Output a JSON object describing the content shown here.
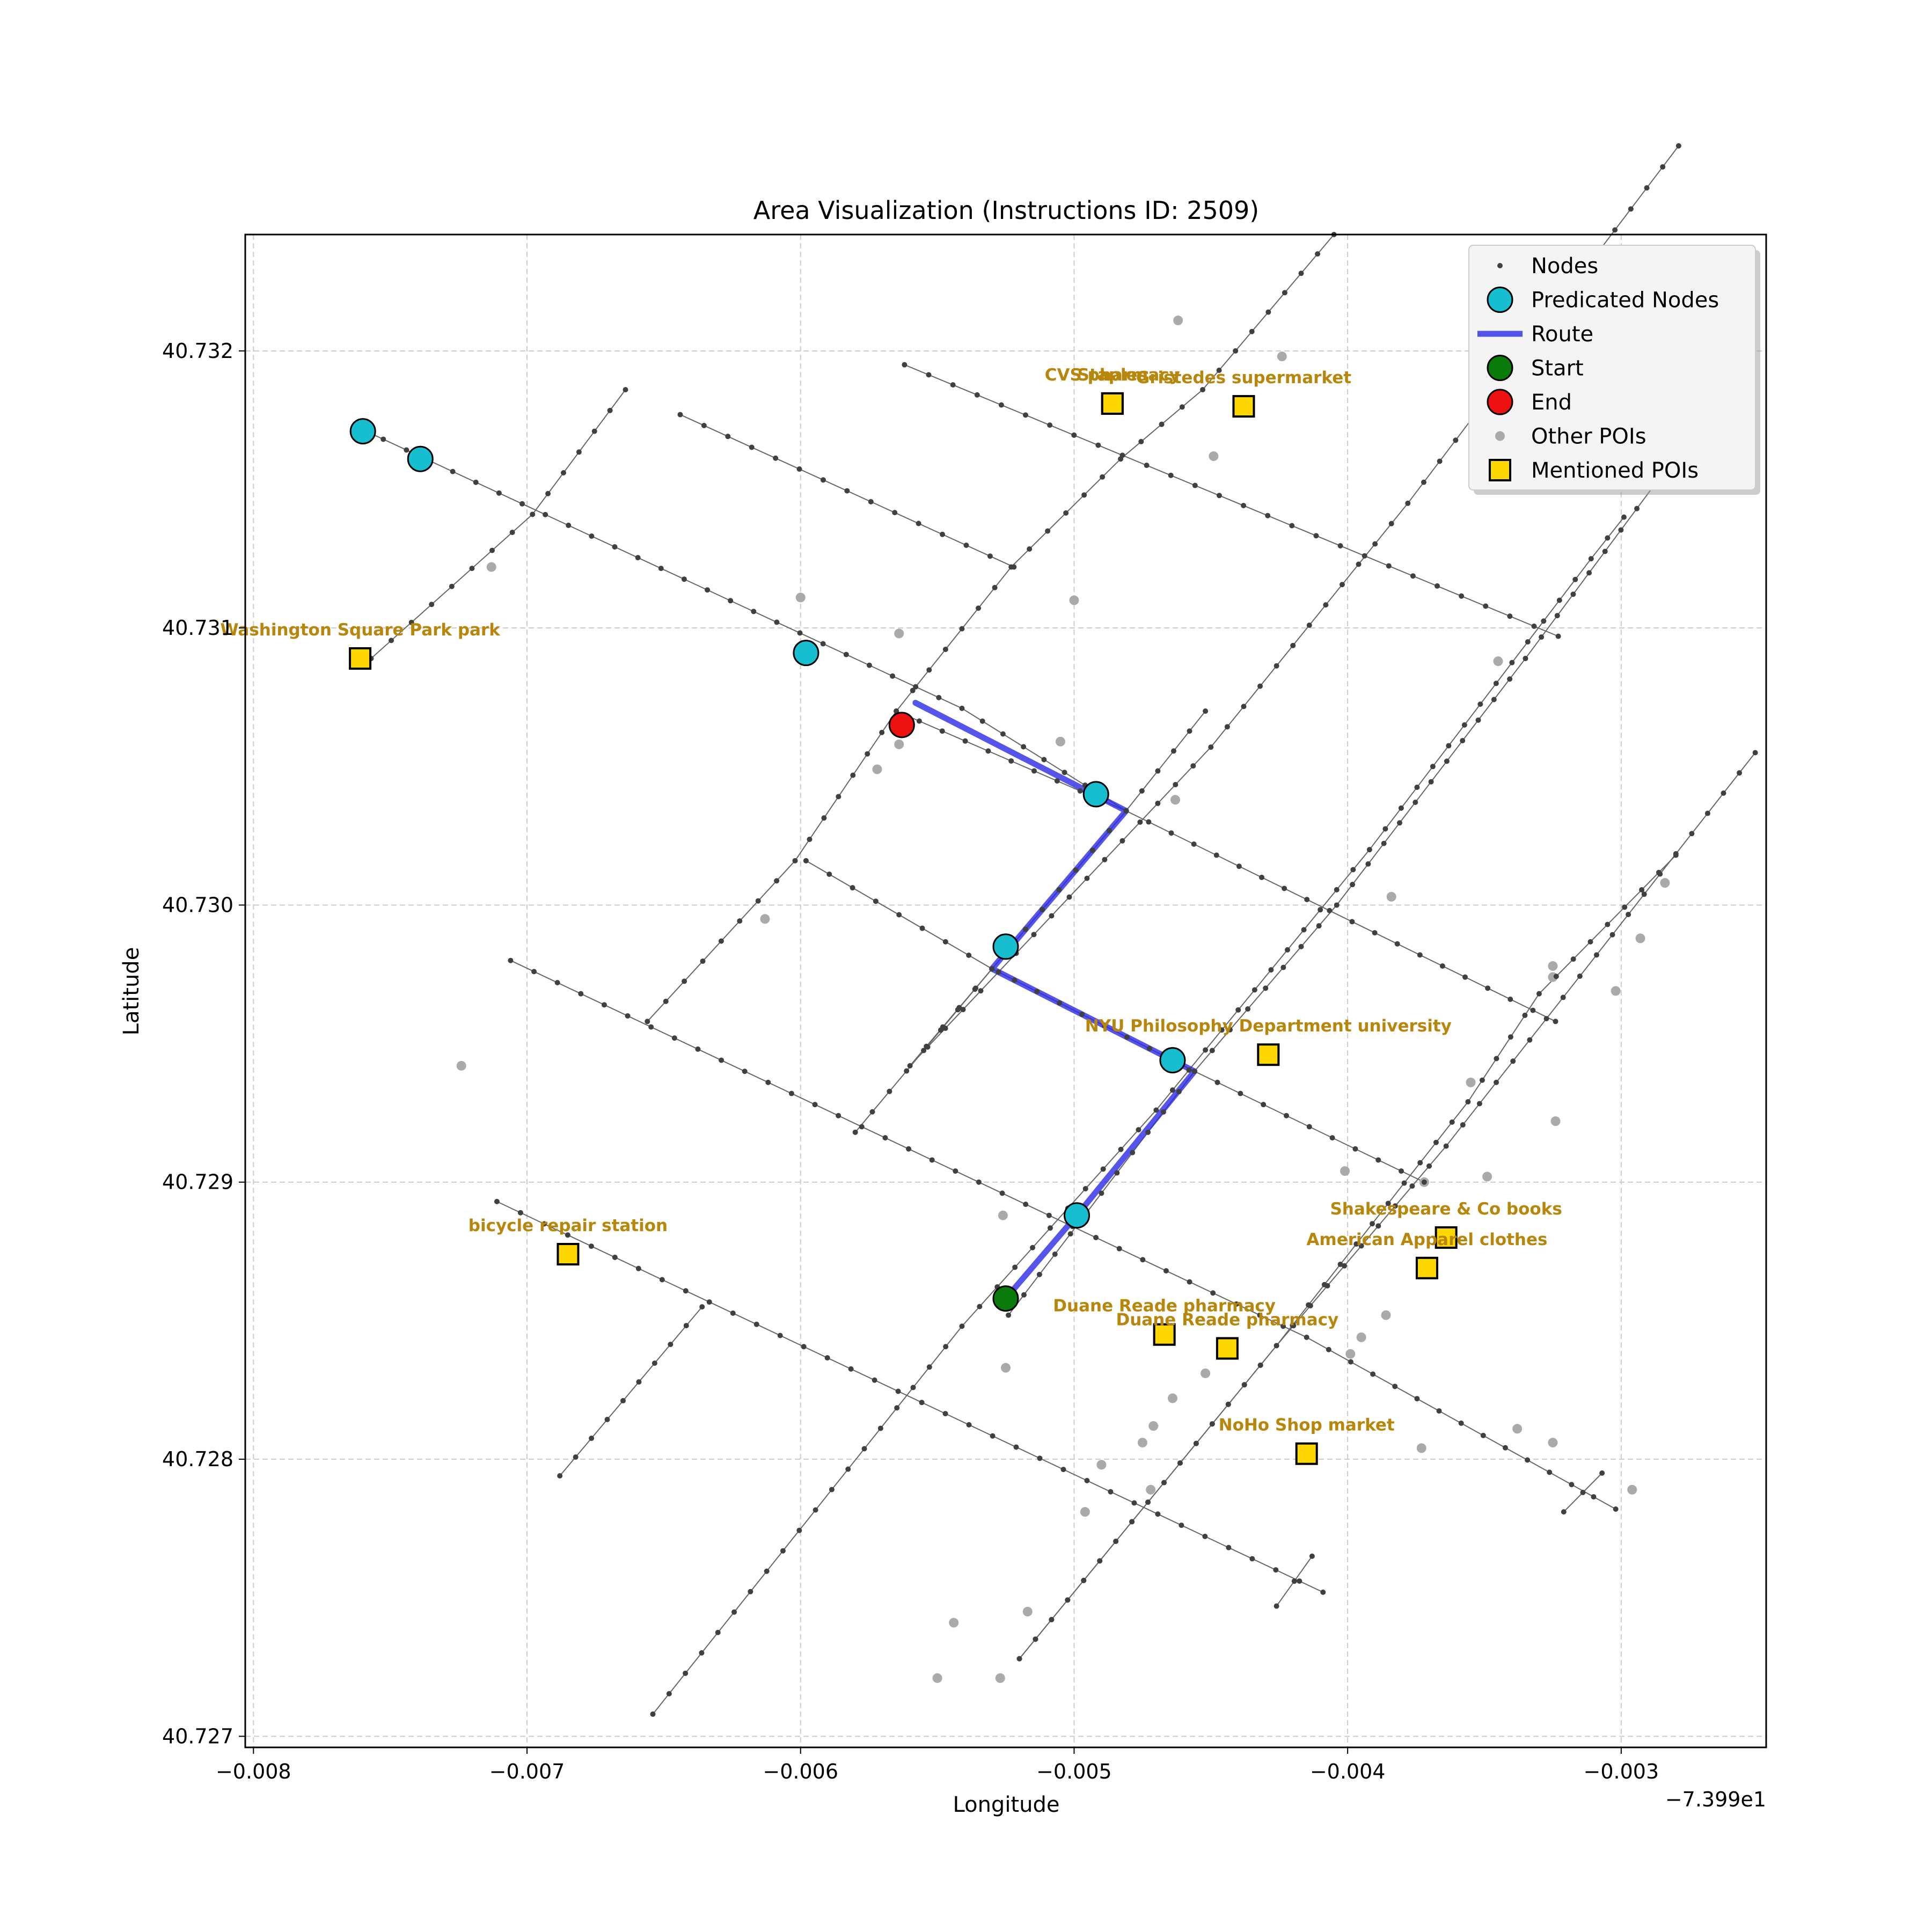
{
  "chart_data": {
    "type": "scatter",
    "title": "Area Visualization (Instructions ID: 2509)",
    "xlabel": "Longitude",
    "ylabel": "Latitude",
    "x_offset_label": "−7.399e1",
    "xlim": [
      -0.00803,
      -0.00247
    ],
    "ylim": [
      40.72696,
      40.73242
    ],
    "xticks": [
      -0.008,
      -0.007,
      -0.006,
      -0.005,
      -0.004,
      -0.003
    ],
    "xtick_labels": [
      "−0.008",
      "−0.007",
      "−0.006",
      "−0.005",
      "−0.004",
      "−0.003"
    ],
    "yticks": [
      40.727,
      40.728,
      40.729,
      40.73,
      40.731,
      40.732
    ],
    "ytick_labels": [
      "40.727",
      "40.728",
      "40.729",
      "40.730",
      "40.731",
      "40.732"
    ],
    "grid": true,
    "legend_position": "top-right",
    "legend": [
      {
        "key": "nodes",
        "label": "Nodes"
      },
      {
        "key": "predicted",
        "label": "Predicated Nodes"
      },
      {
        "key": "route",
        "label": "Route"
      },
      {
        "key": "start",
        "label": "Start"
      },
      {
        "key": "end",
        "label": "End"
      },
      {
        "key": "other_pois",
        "label": "Other POIs"
      },
      {
        "key": "mentioned_pois",
        "label": "Mentioned POIs"
      }
    ],
    "colors": {
      "node": "#404040",
      "street": "#666666",
      "predicted": "#17becf",
      "route": "#2a2ae6",
      "start": "#0a7a0a",
      "end": "#ee1111",
      "other_poi": "#aaaaaa",
      "mentioned_poi": "#ffd700",
      "poi_label": "#b8860b",
      "grid": "#cccccc"
    },
    "streets": [
      [
        [
          -0.00761,
          40.73172
        ],
        [
          -0.00541,
          40.73071
        ],
        [
          -0.00481,
          40.73034
        ],
        [
          -0.00324,
          40.72958
        ]
      ],
      [
        [
          -0.00598,
          40.73016
        ],
        [
          -0.0053,
          40.72977
        ],
        [
          -0.00456,
          40.7294
        ],
        [
          -0.00372,
          40.729
        ]
      ],
      [
        [
          -0.00706,
          40.7298
        ],
        [
          -0.00415,
          40.72844
        ],
        [
          -0.00302,
          40.72782
        ]
      ],
      [
        [
          -0.00711,
          40.72893
        ],
        [
          -0.00409,
          40.72752
        ]
      ],
      [
        [
          -0.00644,
          40.73177
        ],
        [
          -0.00522,
          40.73122
        ]
      ],
      [
        [
          -0.00562,
          40.73195
        ],
        [
          -0.00323,
          40.73097
        ]
      ],
      [
        [
          -0.00654,
          40.72708
        ],
        [
          -0.00541,
          40.72848
        ],
        [
          -0.0047,
          40.72926
        ],
        [
          -0.00392,
          40.7302
        ],
        [
          -0.00311,
          40.73125
        ],
        [
          -0.00299,
          40.7314
        ]
      ],
      [
        [
          -0.00565,
          40.7307
        ],
        [
          -0.00481,
          40.73034
        ],
        [
          -0.0053,
          40.72977
        ],
        [
          -0.0056,
          40.72942
        ],
        [
          -0.0045,
          40.73057
        ],
        [
          -0.00378,
          40.73145
        ],
        [
          -0.00279,
          40.73274
        ]
      ],
      [
        [
          -0.00524,
          40.72852
        ],
        [
          -0.00456,
          40.7294
        ],
        [
          -0.00404,
          40.73
        ],
        [
          -0.00335,
          40.73089
        ],
        [
          -0.00271,
          40.73174
        ]
      ],
      [
        [
          -0.0052,
          40.72728
        ],
        [
          -0.00426,
          40.72841
        ],
        [
          -0.00356,
          40.72929
        ],
        [
          -0.0033,
          40.72968
        ],
        [
          -0.0028,
          40.73018
        ]
      ],
      [
        [
          -0.0052,
          40.72728
        ],
        [
          -0.00426,
          40.72841
        ],
        [
          -0.00364,
          40.72913
        ],
        [
          -0.00309,
          40.72982
        ],
        [
          -0.00251,
          40.73055
        ]
      ],
      [
        [
          -0.00757,
          40.73089
        ],
        [
          -0.00698,
          40.73141
        ],
        [
          -0.00664,
          40.73186
        ]
      ],
      [
        [
          -0.00688,
          40.72794
        ],
        [
          -0.00636,
          40.72855
        ]
      ],
      [
        [
          -0.00413,
          40.72765
        ],
        [
          -0.00426,
          40.72747
        ]
      ],
      [
        [
          -0.00307,
          40.72795
        ],
        [
          -0.00321,
          40.72781
        ]
      ],
      [
        [
          -0.00656,
          40.72958
        ],
        [
          -0.00602,
          40.73016
        ],
        [
          -0.00565,
          40.7307
        ],
        [
          -0.00523,
          40.73122
        ],
        [
          -0.00483,
          40.73161
        ],
        [
          -0.00453,
          40.73186
        ],
        [
          -0.00405,
          40.73242
        ]
      ],
      [
        [
          -0.0058,
          40.72918
        ],
        [
          -0.0053,
          40.72977
        ],
        [
          -0.00481,
          40.73034
        ],
        [
          -0.00452,
          40.7307
        ]
      ]
    ],
    "route": [
      [
        -0.00525,
        40.72858
      ],
      [
        -0.00499,
        40.72888
      ],
      [
        -0.00456,
        40.7294
      ],
      [
        -0.0053,
        40.72977
      ],
      [
        -0.00481,
        40.73034
      ],
      [
        -0.00558,
        40.73073
      ]
    ],
    "predicted_nodes": [
      [
        -0.0076,
        40.73171
      ],
      [
        -0.00739,
        40.73161
      ],
      [
        -0.00598,
        40.73091
      ],
      [
        -0.00492,
        40.7304
      ],
      [
        -0.00525,
        40.72985
      ],
      [
        -0.00464,
        40.72944
      ],
      [
        -0.00499,
        40.72888
      ]
    ],
    "start": [
      -0.00525,
      40.72858
    ],
    "end": [
      -0.00563,
      40.73065
    ],
    "other_pois": [
      [
        -0.00462,
        40.73211
      ],
      [
        -0.00424,
        40.73198
      ],
      [
        -0.00449,
        40.73162
      ],
      [
        -0.00713,
        40.73122
      ],
      [
        -0.006,
        40.73111
      ],
      [
        -0.005,
        40.7311
      ],
      [
        -0.00564,
        40.73098
      ],
      [
        -0.00345,
        40.73088
      ],
      [
        -0.00505,
        40.73059
      ],
      [
        -0.00564,
        40.73058
      ],
      [
        -0.00572,
        40.73049
      ],
      [
        -0.00463,
        40.73038
      ],
      [
        -0.00613,
        40.72995
      ],
      [
        -0.00384,
        40.73003
      ],
      [
        -0.00284,
        40.73008
      ],
      [
        -0.00293,
        40.72988
      ],
      [
        -0.00325,
        40.72978
      ],
      [
        -0.00325,
        40.72974
      ],
      [
        -0.00302,
        40.72969
      ],
      [
        -0.00724,
        40.72942
      ],
      [
        -0.00355,
        40.72936
      ],
      [
        -0.00324,
        40.72922
      ],
      [
        -0.00401,
        40.72904
      ],
      [
        -0.00349,
        40.72902
      ],
      [
        -0.00372,
        40.729
      ],
      [
        -0.00526,
        40.72888
      ],
      [
        -0.00386,
        40.72852
      ],
      [
        -0.00395,
        40.72844
      ],
      [
        -0.00399,
        40.72838
      ],
      [
        -0.00525,
        40.72833
      ],
      [
        -0.00452,
        40.72831
      ],
      [
        -0.00464,
        40.72822
      ],
      [
        -0.00471,
        40.72812
      ],
      [
        -0.00475,
        40.72806
      ],
      [
        -0.00338,
        40.72811
      ],
      [
        -0.00325,
        40.72806
      ],
      [
        -0.00373,
        40.72804
      ],
      [
        -0.0049,
        40.72798
      ],
      [
        -0.00472,
        40.72789
      ],
      [
        -0.00296,
        40.72789
      ],
      [
        -0.00496,
        40.72781
      ],
      [
        -0.00517,
        40.72745
      ],
      [
        -0.00544,
        40.72741
      ],
      [
        -0.0055,
        40.72721
      ],
      [
        -0.00527,
        40.72721
      ]
    ],
    "mentioned_pois": [
      {
        "x": -0.00486,
        "y": 40.73181,
        "label": "CVS pharmacy"
      },
      {
        "x": -0.00486,
        "y": 40.73181,
        "label": "Staples"
      },
      {
        "x": -0.00438,
        "y": 40.7318,
        "label": "Gristedes     supermarket"
      },
      {
        "x": -0.00761,
        "y": 40.73089,
        "label": "Washington Square Park   park"
      },
      {
        "x": -0.00429,
        "y": 40.72946,
        "label": "NYU Philosophy Department university"
      },
      {
        "x": -0.00685,
        "y": 40.72874,
        "label": "bicycle repair station"
      },
      {
        "x": -0.00364,
        "y": 40.7288,
        "label": "Shakespeare & Co     books"
      },
      {
        "x": -0.00371,
        "y": 40.72869,
        "label": "American Apparel     clothes"
      },
      {
        "x": -0.00467,
        "y": 40.72845,
        "label": "Duane Reade pharmacy"
      },
      {
        "x": -0.00444,
        "y": 40.7284,
        "label": "Duane Reade pharmacy"
      },
      {
        "x": -0.00415,
        "y": 40.72802,
        "label": "NoHo Shop     market"
      }
    ]
  }
}
